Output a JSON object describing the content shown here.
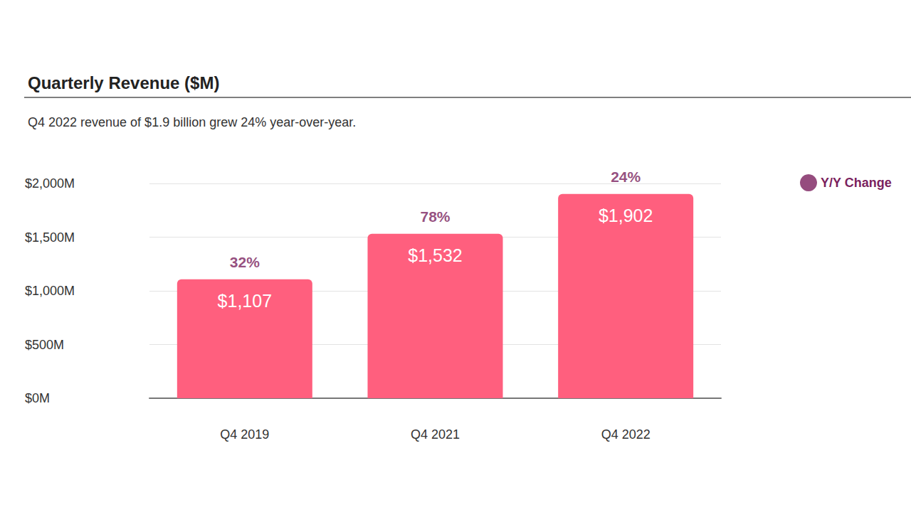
{
  "chart_data": {
    "type": "bar",
    "title": "Quarterly Revenue ($M)",
    "subtitle": "Q4 2022 revenue of $1.9 billion grew 24% year-over-year.",
    "categories": [
      "Q4 2019",
      "Q4 2021",
      "Q4 2022"
    ],
    "values": [
      1107,
      1532,
      1902
    ],
    "value_labels": [
      "$1,107",
      "$1,532",
      "$1,902"
    ],
    "color": "#ff5f7e",
    "data_labels": true,
    "yoy_change": {
      "name": "Y/Y Change",
      "color": "#7b1f5e",
      "values": [
        32,
        78,
        24
      ],
      "value_labels": [
        "32%",
        "78%",
        "24%"
      ]
    },
    "ylim": [
      0,
      2000
    ],
    "yticks": [
      {
        "value": 0,
        "label": "$0M"
      },
      {
        "value": 500,
        "label": "$500M"
      },
      {
        "value": 1000,
        "label": "$1,000M"
      },
      {
        "value": 1500,
        "label": "$1,500M"
      },
      {
        "value": 2000,
        "label": "$2,000M"
      }
    ],
    "grid": true,
    "legend": "right"
  }
}
